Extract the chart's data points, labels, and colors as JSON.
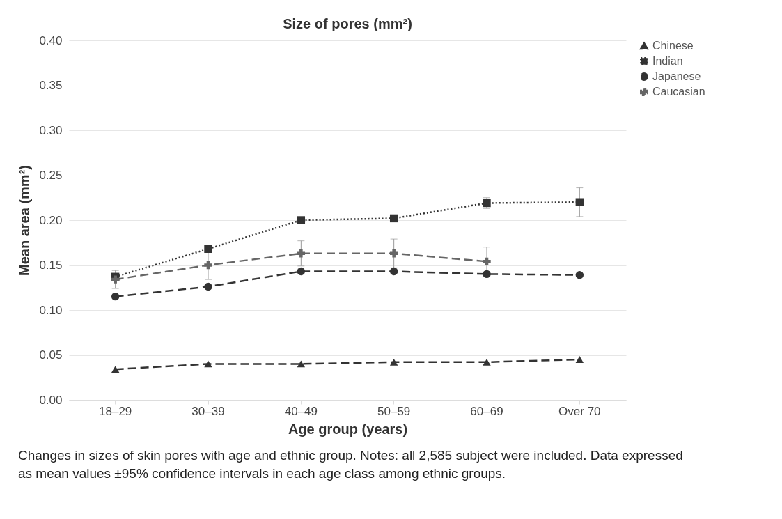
{
  "chart_data": {
    "type": "line",
    "title": "Size of pores (mm²)",
    "xlabel": "Age group (years)",
    "ylabel": "Mean area (mm²)",
    "categories": [
      "18–29",
      "30–39",
      "40–49",
      "50–59",
      "60–69",
      "Over 70"
    ],
    "series": [
      {
        "name": "Chinese",
        "color": "#333333",
        "marker": "triangle",
        "line_style": "dashed",
        "values": [
          0.034,
          0.04,
          0.04,
          0.042,
          0.042,
          0.045
        ]
      },
      {
        "name": "Indian",
        "color": "#333333",
        "marker": "square",
        "line_style": "dotted",
        "values": [
          0.137,
          0.168,
          0.2,
          0.202,
          0.219,
          0.22
        ],
        "errors": [
          null,
          null,
          null,
          0.003,
          0.006,
          0.016
        ]
      },
      {
        "name": "Japanese",
        "color": "#333333",
        "marker": "circle",
        "line_style": "dashed",
        "values": [
          0.115,
          0.126,
          0.143,
          0.143,
          0.14,
          0.139
        ]
      },
      {
        "name": "Caucasian",
        "color": "#666666",
        "marker": "cross",
        "line_style": "dashed",
        "values": [
          0.134,
          0.15,
          0.163,
          0.163,
          0.154,
          null
        ],
        "errors": [
          0.01,
          0.016,
          0.014,
          0.016,
          0.016,
          null
        ]
      }
    ],
    "ylim": [
      0,
      0.4
    ],
    "yticks": [
      {
        "value": 0,
        "label": "0.00"
      },
      {
        "value": 0.05,
        "label": "0.05"
      },
      {
        "value": 0.1,
        "label": "0.10"
      },
      {
        "value": 0.15,
        "label": "0.15"
      },
      {
        "value": 0.2,
        "label": "0.20"
      },
      {
        "value": 0.25,
        "label": "0.25"
      },
      {
        "value": 0.3,
        "label": "0.30"
      },
      {
        "value": 0.35,
        "label": "0.35"
      },
      {
        "value": 0.4,
        "label": "0.40"
      }
    ],
    "grid": "y",
    "legend": "right",
    "annotations": [
      "Changes in sizes of skin pores with age and ethnic group. Notes: all 2,585 subject were included. Data expressed as mean values ±95% confidence intervals in each age class among ethnic groups."
    ]
  }
}
